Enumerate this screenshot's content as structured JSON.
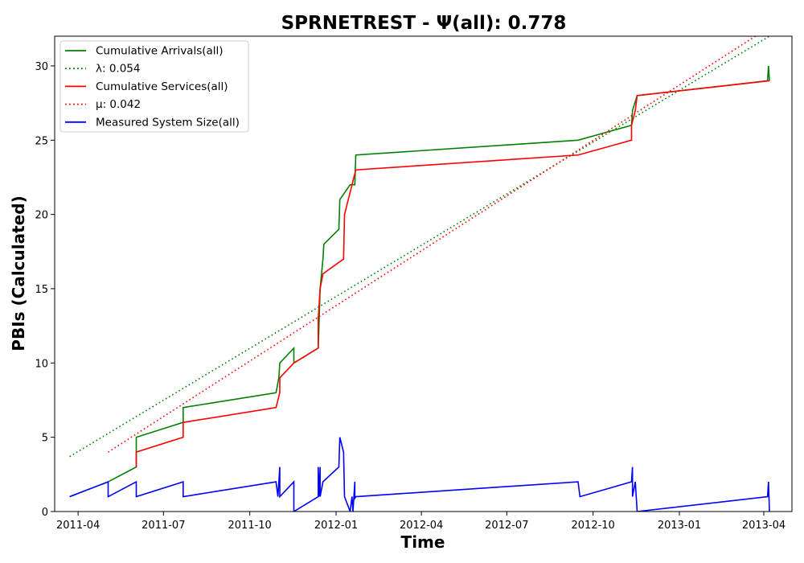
{
  "chart_data": {
    "type": "line",
    "title": "SPRNETREST -  Ψ(all): 0.778",
    "xlabel": "Time",
    "ylabel": "PBIs (Calculated)",
    "xlim": [
      "2011-03-07",
      "2013-05-01"
    ],
    "ylim": [
      0,
      32
    ],
    "x_ticks": [
      "2011-04",
      "2011-07",
      "2011-10",
      "2012-01",
      "2012-04",
      "2012-07",
      "2012-10",
      "2013-01",
      "2013-04"
    ],
    "y_ticks": [
      0,
      5,
      10,
      15,
      20,
      25,
      30
    ],
    "grid": false,
    "legend": "upper left",
    "series": [
      {
        "name": "Cumulative Arrivals(all)",
        "color": "#008000",
        "style": "solid",
        "points": [
          [
            "2011-03-23",
            1
          ],
          [
            "2011-05-03",
            2
          ],
          [
            "2011-06-02",
            3
          ],
          [
            "2011-06-02",
            5
          ],
          [
            "2011-07-22",
            6
          ],
          [
            "2011-07-22",
            7
          ],
          [
            "2011-10-29",
            8
          ],
          [
            "2011-11-01",
            9
          ],
          [
            "2011-11-02",
            10
          ],
          [
            "2011-11-17",
            11
          ],
          [
            "2011-11-17",
            10
          ],
          [
            "2011-12-13",
            11
          ],
          [
            "2011-12-15",
            15
          ],
          [
            "2011-12-18",
            17
          ],
          [
            "2011-12-19",
            18
          ],
          [
            "2012-01-04",
            19
          ],
          [
            "2012-01-05",
            21
          ],
          [
            "2012-01-16",
            22
          ],
          [
            "2012-01-21",
            22
          ],
          [
            "2012-01-22",
            24
          ],
          [
            "2012-09-15",
            25
          ],
          [
            "2012-11-11",
            26
          ],
          [
            "2012-11-12",
            27
          ],
          [
            "2012-11-17",
            28
          ],
          [
            "2013-04-05",
            29
          ],
          [
            "2013-04-06",
            30
          ],
          [
            "2013-04-07",
            29
          ]
        ]
      },
      {
        "name": "λ: 0.054",
        "color": "#008000",
        "style": "dotted",
        "points": [
          [
            "2011-03-23",
            3.7
          ],
          [
            "2013-04-07",
            32
          ]
        ]
      },
      {
        "name": "Cumulative Services(all)",
        "color": "#ff0000",
        "style": "solid",
        "points": [
          [
            "2011-06-02",
            3
          ],
          [
            "2011-06-02",
            4
          ],
          [
            "2011-07-22",
            5
          ],
          [
            "2011-07-22",
            6
          ],
          [
            "2011-10-29",
            7
          ],
          [
            "2011-11-02",
            8
          ],
          [
            "2011-11-02",
            9
          ],
          [
            "2011-11-17",
            10
          ],
          [
            "2011-12-13",
            11
          ],
          [
            "2011-12-13",
            13
          ],
          [
            "2011-12-15",
            15
          ],
          [
            "2011-12-18",
            16
          ],
          [
            "2012-01-09",
            17
          ],
          [
            "2012-01-10",
            20
          ],
          [
            "2012-01-14",
            21
          ],
          [
            "2012-01-22",
            23
          ],
          [
            "2012-09-15",
            24
          ],
          [
            "2012-11-11",
            25
          ],
          [
            "2012-11-11",
            26
          ],
          [
            "2012-11-15",
            27
          ],
          [
            "2012-11-17",
            28
          ],
          [
            "2013-04-07",
            29
          ]
        ]
      },
      {
        "name": "μ: 0.042",
        "color": "#ff0000",
        "style": "dotted",
        "points": [
          [
            "2011-05-03",
            4.0
          ],
          [
            "2013-03-23",
            32
          ]
        ]
      },
      {
        "name": "Measured System Size(all)",
        "color": "#0000ff",
        "style": "solid",
        "points": [
          [
            "2011-03-23",
            1
          ],
          [
            "2011-05-03",
            2
          ],
          [
            "2011-05-03",
            1
          ],
          [
            "2011-06-02",
            2
          ],
          [
            "2011-06-02",
            1
          ],
          [
            "2011-07-22",
            2
          ],
          [
            "2011-07-22",
            1
          ],
          [
            "2011-10-29",
            2
          ],
          [
            "2011-10-31",
            1
          ],
          [
            "2011-11-01",
            2
          ],
          [
            "2011-11-02",
            3
          ],
          [
            "2011-11-02",
            1
          ],
          [
            "2011-11-17",
            2
          ],
          [
            "2011-11-17",
            0
          ],
          [
            "2011-12-13",
            1
          ],
          [
            "2011-12-13",
            3
          ],
          [
            "2011-12-14",
            1
          ],
          [
            "2011-12-15",
            3
          ],
          [
            "2011-12-15",
            1
          ],
          [
            "2011-12-18",
            2
          ],
          [
            "2012-01-04",
            3
          ],
          [
            "2012-01-05",
            5
          ],
          [
            "2012-01-09",
            4
          ],
          [
            "2012-01-10",
            1
          ],
          [
            "2012-01-16",
            0
          ],
          [
            "2012-01-18",
            1
          ],
          [
            "2012-01-19",
            0
          ],
          [
            "2012-01-21",
            2
          ],
          [
            "2012-01-21",
            0.9
          ],
          [
            "2012-01-22",
            1
          ],
          [
            "2012-09-15",
            2
          ],
          [
            "2012-09-17",
            1
          ],
          [
            "2012-11-11",
            2
          ],
          [
            "2012-11-12",
            3
          ],
          [
            "2012-11-12",
            1
          ],
          [
            "2012-11-15",
            2
          ],
          [
            "2012-11-17",
            0
          ],
          [
            "2013-04-05",
            1
          ],
          [
            "2013-04-06",
            2
          ],
          [
            "2013-04-07",
            0
          ]
        ]
      }
    ]
  }
}
